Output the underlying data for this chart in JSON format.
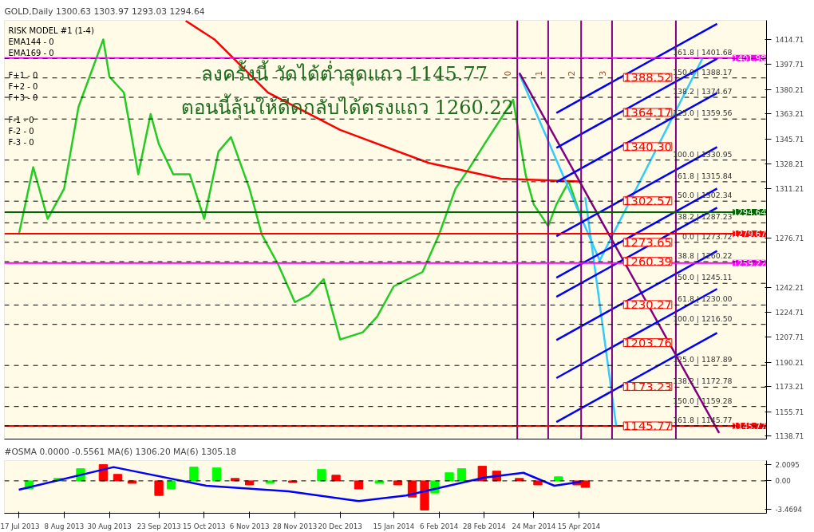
{
  "chart_data": [
    {
      "type": "line",
      "title": "GOLD,Daily 1300.63 1303.97 1293.03 1294.64",
      "subtitle": "ลงครั้งนี้  วัดได้ต่ำสุดแถว 1145.77\nตอนนี้ลุ้นให้ดีดกลับได้ตรงแถว 1260.22",
      "annotations": [
        "RISK MODEL #1 (1-4)",
        "EMA144 - 0",
        "EMA169 - 0",
        "F+1 - 0",
        "F+2 - 0",
        "F+3 - 0",
        "F-1 - 0",
        "F-2 - 0",
        "F-3 - 0",
        {
          "text": "1388.52",
          "x": "2014-05-05",
          "y": 1388.52
        },
        {
          "text": "1364.17",
          "x": "2014-05-05",
          "y": 1364.17
        },
        {
          "text": "1340.30",
          "x": "2014-05-05",
          "y": 1340.3
        },
        {
          "text": "1302.57",
          "x": "2014-05-05",
          "y": 1302.57
        },
        {
          "text": "1273.65",
          "x": "2014-05-05",
          "y": 1273.65
        },
        {
          "text": "1260.39",
          "x": "2014-05-05",
          "y": 1260.39
        },
        {
          "text": "1230.27",
          "x": "2014-05-05",
          "y": 1230.27
        },
        {
          "text": "1203.76",
          "x": "2014-05-05",
          "y": 1203.76
        },
        {
          "text": "1173.23",
          "x": "2014-05-05",
          "y": 1173.23
        },
        {
          "text": "1145.77",
          "x": "2014-05-05",
          "y": 1145.77
        }
      ],
      "xlim": [
        "2013-07-10",
        "2014-07-15"
      ],
      "ylim": [
        1136.6,
        1428.3
      ],
      "yticks": [
        1414.71,
        1397.71,
        1380.21,
        1363.21,
        1345.71,
        1328.21,
        1311.21,
        1276.71,
        1242.21,
        1224.71,
        1207.71,
        1190.21,
        1173.21,
        1155.71,
        1138.71
      ],
      "tick_labels": "y",
      "grid": false,
      "series": [
        {
          "color": "#22cc22",
          "x": [
            "2013-07-17",
            "2013-07-24",
            "2013-07-31",
            "2013-08-08",
            "2013-08-15",
            "2013-08-27",
            "2013-08-30",
            "2013-09-06",
            "2013-09-13",
            "2013-09-19",
            "2013-09-23",
            "2013-09-30",
            "2013-10-08",
            "2013-10-15",
            "2013-10-22",
            "2013-10-28",
            "2013-11-06",
            "2013-11-12",
            "2013-11-20",
            "2013-11-28",
            "2013-12-05",
            "2013-12-12",
            "2013-12-20",
            "2013-12-31",
            "2014-01-07",
            "2014-01-15",
            "2014-01-22",
            "2014-01-29",
            "2014-02-06",
            "2014-02-14",
            "2014-02-21",
            "2014-02-28",
            "2014-03-14",
            "2014-03-20",
            "2014-03-24",
            "2014-03-31",
            "2014-04-04",
            "2014-04-10",
            "2014-04-15",
            "2014-04-18"
          ],
          "values": [
            1279,
            1326,
            1290,
            1311,
            1368,
            1415,
            1389,
            1378,
            1321,
            1363,
            1342,
            1321,
            1321,
            1290,
            1337,
            1347,
            1311,
            1279,
            1258,
            1232,
            1237,
            1248,
            1206,
            1211,
            1222,
            1243,
            1248,
            1253,
            1279,
            1311,
            1326,
            1342,
            1373,
            1321,
            1300,
            1285,
            1300,
            1316,
            1295,
            1295
          ]
        },
        {
          "color": "#ff0000",
          "x": [
            "2013-10-06",
            "2013-10-20",
            "2013-11-15",
            "2013-12-20",
            "2014-02-01",
            "2014-03-08",
            "2014-04-15"
          ],
          "values": [
            1428,
            1415,
            1378,
            1352,
            1329,
            1318,
            1316
          ]
        },
        {
          "color": "#33ccff",
          "x": [
            "2014-03-17",
            "2014-04-25",
            "2014-06-14"
          ],
          "values": [
            1391,
            1261,
            1402
          ]
        },
        {
          "color": "#33ccff",
          "x": [
            "2014-04-18",
            "2014-05-03"
          ],
          "values": [
            1305,
            1146
          ]
        },
        {
          "color": "#800080",
          "x": [
            "2014-03-17",
            "2014-06-22"
          ],
          "values": [
            1391.7,
            1140.8
          ]
        },
        {
          "color": "#0000ff",
          "x": [
            "2014-04-04",
            "2014-06-21"
          ],
          "values": [
            1363.8,
            1425.9
          ]
        },
        {
          "color": "#0000ff",
          "x": [
            "2014-04-04",
            "2014-06-21"
          ],
          "values": [
            1339.5,
            1401.6
          ]
        },
        {
          "color": "#0000ff",
          "x": [
            "2014-04-04",
            "2014-06-21"
          ],
          "values": [
            1315.6,
            1377.7
          ]
        },
        {
          "color": "#0000ff",
          "x": [
            "2014-04-04",
            "2014-06-21"
          ],
          "values": [
            1277.9,
            1340.0
          ]
        },
        {
          "color": "#0000ff",
          "x": [
            "2014-04-04",
            "2014-06-21"
          ],
          "values": [
            1249.0,
            1311.1
          ]
        },
        {
          "color": "#0000ff",
          "x": [
            "2014-04-04",
            "2014-06-21"
          ],
          "values": [
            1235.7,
            1297.8
          ]
        },
        {
          "color": "#0000ff",
          "x": [
            "2014-04-04",
            "2014-06-21"
          ],
          "values": [
            1205.6,
            1267.7
          ]
        },
        {
          "color": "#0000ff",
          "x": [
            "2014-04-04",
            "2014-06-21"
          ],
          "values": [
            1179.1,
            1241.2
          ]
        },
        {
          "color": "#0000ff",
          "x": [
            "2014-04-04",
            "2014-06-21"
          ],
          "values": [
            1148.5,
            1210.6
          ]
        }
      ],
      "ref_lines": [
        {
          "axis": "x",
          "value": "2014-03-16",
          "label": "0",
          "color": "#800080"
        },
        {
          "axis": "x",
          "value": "2014-03-31",
          "label": "1",
          "color": "#800080"
        },
        {
          "axis": "x",
          "value": "2014-04-16",
          "label": "2",
          "color": "#800080"
        },
        {
          "axis": "x",
          "value": "2014-05-01",
          "label": "3",
          "color": "#800080"
        },
        {
          "axis": "x",
          "value": "2014-06-01",
          "label": null,
          "color": "#800080"
        },
        {
          "axis": "y",
          "value": 1401.98,
          "label": "1401.98",
          "color": "#ff00ff",
          "line_style": "solid"
        },
        {
          "axis": "y",
          "value": 1294.64,
          "label": "1294.64",
          "color": "#006400",
          "line_style": "solid"
        },
        {
          "axis": "y",
          "value": 1279.67,
          "label": "1279.67",
          "color": "#ff0000",
          "line_style": "solid"
        },
        {
          "axis": "y",
          "value": 1259.22,
          "label": "1259.22",
          "color": "#ff00ff",
          "line_style": "solid"
        },
        {
          "axis": "y",
          "value": 1145.77,
          "label": "1145.77",
          "color": "#ff0000",
          "line_style": "solid"
        },
        {
          "axis": "y",
          "value": 1401.68,
          "label": "161.8 | 1401.68",
          "color": "#000000",
          "line_style": "dashed"
        },
        {
          "axis": "y",
          "value": 1388.17,
          "label": "150.0 | 1388.17",
          "color": "#000000",
          "line_style": "dashed"
        },
        {
          "axis": "y",
          "value": 1374.67,
          "label": "138.2 | 1374.67",
          "color": "#000000",
          "line_style": "dashed"
        },
        {
          "axis": "y",
          "value": 1359.56,
          "label": "125.0 | 1359.56",
          "color": "#000000",
          "line_style": "dashed"
        },
        {
          "axis": "y",
          "value": 1330.95,
          "label": "100.0 | 1330.95",
          "color": "#000000",
          "line_style": "dashed"
        },
        {
          "axis": "y",
          "value": 1315.84,
          "label": "61.8 | 1315.84",
          "color": "#000000",
          "line_style": "dashed"
        },
        {
          "axis": "y",
          "value": 1302.34,
          "label": "50.0 | 1302.34",
          "color": "#000000",
          "line_style": "dashed"
        },
        {
          "axis": "y",
          "value": 1287.23,
          "label": "38.2 | 1287.23",
          "color": "#000000",
          "line_style": "dashed"
        },
        {
          "axis": "y",
          "value": 1273.72,
          "label": "0.0 | 1273.72",
          "color": "#000000",
          "line_style": "dashed"
        },
        {
          "axis": "y",
          "value": 1260.22,
          "label": "38.8 | 1260.22",
          "color": "#000000",
          "line_style": "dashed"
        },
        {
          "axis": "y",
          "value": 1245.11,
          "label": "50.0 | 1245.11",
          "color": "#000000",
          "line_style": "dashed"
        },
        {
          "axis": "y",
          "value": 1230.0,
          "label": "61.8 | 1230.00",
          "color": "#000000",
          "line_style": "dashed"
        },
        {
          "axis": "y",
          "value": 1216.5,
          "label": "100.0 | 1216.50",
          "color": "#000000",
          "line_style": "dashed"
        },
        {
          "axis": "y",
          "value": 1187.89,
          "label": "125.0 | 1187.89",
          "color": "#000000",
          "line_style": "dashed"
        },
        {
          "axis": "y",
          "value": 1172.78,
          "label": "138.2 | 1172.78",
          "color": "#000000",
          "line_style": "dashed"
        },
        {
          "axis": "y",
          "value": 1159.28,
          "label": "150.0 | 1159.28",
          "color": "#000000",
          "line_style": "dashed"
        },
        {
          "axis": "y",
          "value": 1145.77,
          "label": "161.8 | 1145.77",
          "color": "#000000",
          "line_style": "dashed"
        }
      ]
    },
    {
      "type": "bar",
      "title": "#OSMA 0.0000 -0.5561  MA(6) 1306.20  MA(6) 1305.18",
      "xlim": [
        "2013-07-10",
        "2014-07-15"
      ],
      "ylim": [
        -4.0,
        2.5
      ],
      "xticks": [
        {
          "value": "2013-07-17",
          "label": "17 Jul 2013"
        },
        {
          "value": "2013-08-08",
          "label": "8 Aug 2013"
        },
        {
          "value": "2013-08-30",
          "label": "30 Aug 2013"
        },
        {
          "value": "2013-09-23",
          "label": "23 Sep 2013"
        },
        {
          "value": "2013-10-15",
          "label": "15 Oct 2013"
        },
        {
          "value": "2013-11-06",
          "label": "6 Nov 2013"
        },
        {
          "value": "2013-11-28",
          "label": "28 Nov 2013"
        },
        {
          "value": "2013-12-20",
          "label": "20 Dec 2013"
        },
        {
          "value": "2014-01-15",
          "label": "15 Jan 2014"
        },
        {
          "value": "2014-02-06",
          "label": "6 Feb 2014"
        },
        {
          "value": "2014-02-28",
          "label": "28 Feb 2014"
        },
        {
          "value": "2014-03-24",
          "label": "24 Mar 2014"
        },
        {
          "value": "2014-04-15",
          "label": "15 Apr 2014"
        }
      ],
      "yticks": [
        2.0095,
        {
          "value": 0,
          "label": "0.00"
        },
        -3.4694
      ],
      "grid": false,
      "series": [
        {
          "x": [
            "2013-07-22",
            "2013-08-05",
            "2013-08-16",
            "2013-08-27",
            "2013-09-03",
            "2013-09-10",
            "2013-09-23",
            "2013-09-29",
            "2013-10-10",
            "2013-10-21",
            "2013-10-30",
            "2013-11-06",
            "2013-11-16",
            "2013-11-27",
            "2013-12-11",
            "2013-12-18",
            "2013-12-29",
            "2014-01-08",
            "2014-01-17",
            "2014-01-24",
            "2014-01-30",
            "2014-02-04",
            "2014-02-11",
            "2014-02-17",
            "2014-02-27",
            "2014-03-06",
            "2014-03-17",
            "2014-03-26",
            "2014-04-05",
            "2014-04-14",
            "2014-04-18"
          ],
          "values": [
            -1.0,
            0.3,
            1.5,
            2.0,
            0.8,
            -0.3,
            -1.8,
            -1.0,
            1.7,
            1.6,
            0.3,
            -0.5,
            -0.3,
            -0.2,
            1.4,
            0.7,
            -1.0,
            -0.3,
            -0.5,
            -2.0,
            -3.6,
            -1.5,
            1.0,
            1.5,
            1.8,
            1.2,
            0.3,
            -0.5,
            0.5,
            -0.5,
            -0.8
          ],
          "colors": [
            "#00ff00",
            "#00ff00",
            "#00ff00",
            "#ff0000",
            "#ff0000",
            "#ff0000",
            "#ff0000",
            "#00ff00",
            "#00ff00",
            "#00ff00",
            "#ff0000",
            "#ff0000",
            "#00ff00",
            "#ff0000",
            "#00ff00",
            "#ff0000",
            "#ff0000",
            "#00ff00",
            "#ff0000",
            "#ff0000",
            "#ff0000",
            "#00ff00",
            "#00ff00",
            "#00ff00",
            "#ff0000",
            "#ff0000",
            "#ff0000",
            "#ff0000",
            "#00ff00",
            "#ff0000",
            "#ff0000"
          ]
        },
        {
          "type": "line",
          "color": "#0000ff",
          "x": [
            "2013-07-17",
            "2013-09-01",
            "2013-10-16",
            "2013-11-25",
            "2013-12-29",
            "2014-01-21",
            "2014-02-28",
            "2014-03-19",
            "2014-04-03",
            "2014-04-16"
          ],
          "values": [
            -1.1,
            1.7,
            -0.6,
            -1.3,
            -2.5,
            -1.8,
            0.4,
            1.0,
            -0.6,
            -0.1
          ]
        }
      ],
      "ref_lines": [
        {
          "axis": "y",
          "value": 0,
          "label": null,
          "color": "#000000",
          "line_style": "dashed"
        }
      ]
    }
  ]
}
